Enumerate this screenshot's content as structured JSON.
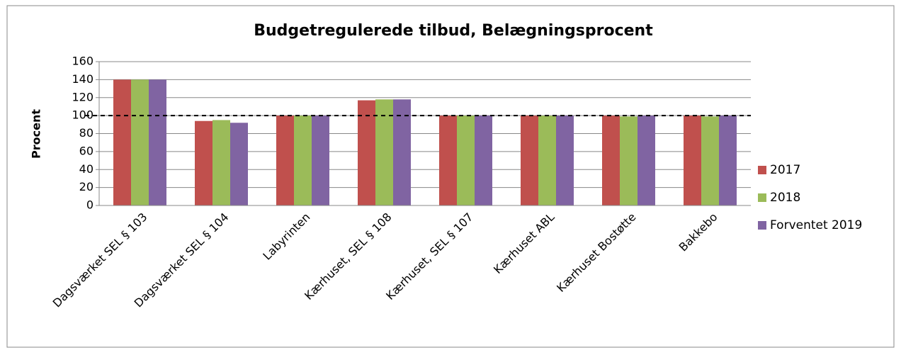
{
  "chart_data": {
    "type": "bar",
    "title": "Budgetregulerede tilbud, Belægningsprocent",
    "y_label": "Procent",
    "categories": [
      "Dagsværket SEL § 103",
      "Dagsværket SEL § 104",
      "Labyrinten",
      "Kærhuset, SEL § 108",
      "Kærhuset, SEL § 107",
      "Kærhuset ABL",
      "Kærhuset Bostøtte",
      "Bakkebo"
    ],
    "series": [
      {
        "name": "2017",
        "color": "#c0504d",
        "values": [
          140,
          94,
          100,
          117,
          100,
          100,
          100,
          100
        ]
      },
      {
        "name": "2018",
        "color": "#9bbb59",
        "values": [
          140,
          95,
          100,
          118,
          100,
          100,
          99,
          99
        ]
      },
      {
        "name": "Forventet 2019",
        "color": "#8064a2",
        "values": [
          140,
          92,
          100,
          118,
          100,
          100,
          100,
          100
        ]
      }
    ],
    "reference_line": 100,
    "ylim": [
      0,
      160
    ],
    "yticks": [
      0,
      20,
      40,
      60,
      80,
      100,
      120,
      140,
      160
    ],
    "grid": true,
    "legend": "right"
  }
}
